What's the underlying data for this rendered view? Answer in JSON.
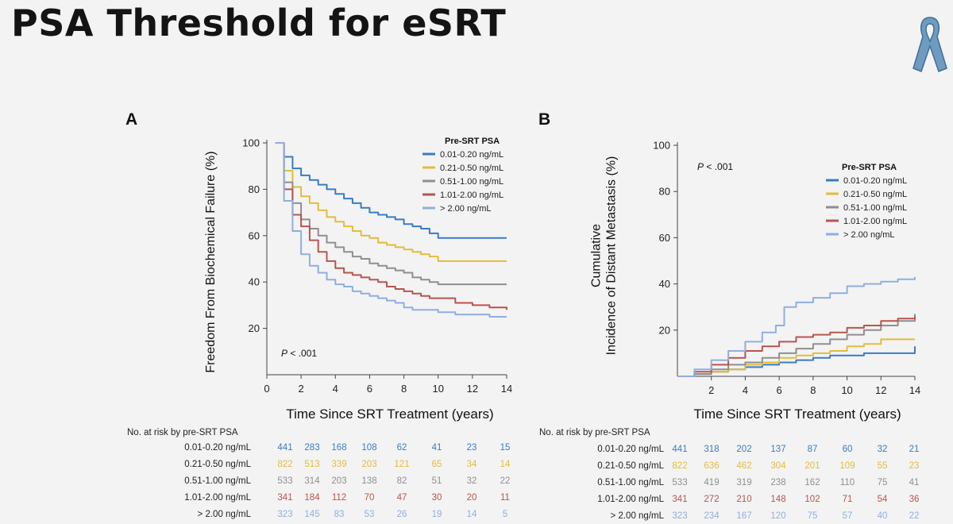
{
  "slide": {
    "title": "PSA Threshold for eSRT",
    "logo_icon": "awareness-ribbon-icon"
  },
  "colors": [
    "#3a7cc2",
    "#e2bd3c",
    "#8f8f8f",
    "#b85450",
    "#90aedf"
  ],
  "chart_data": [
    {
      "type": "line",
      "panel_label": "A",
      "xlabel": "Time Since SRT Treatment (years)",
      "ylabel": "Freedom From Biochemical Failure (%)",
      "xlim": [
        0,
        14
      ],
      "ylim": [
        0,
        100
      ],
      "xticks": [
        0,
        2,
        4,
        6,
        8,
        10,
        12,
        14
      ],
      "yticks": [
        20,
        40,
        60,
        80,
        100
      ],
      "annotation": "P < .001",
      "legend_title": "Pre-SRT PSA",
      "legend_position": "top-right",
      "series": [
        {
          "name": "0.01-0.20 ng/mL",
          "x": [
            0.5,
            1,
            1.5,
            2,
            2.5,
            3,
            3.5,
            4,
            4.5,
            5,
            5.5,
            6,
            6.5,
            7,
            7.5,
            8,
            8.5,
            9,
            9.5,
            10,
            11,
            12,
            13,
            14
          ],
          "y": [
            100,
            94,
            89,
            86,
            84,
            82,
            80,
            78,
            76,
            74,
            72,
            70,
            69,
            68,
            67,
            65,
            64,
            63,
            61,
            59,
            59,
            59,
            59,
            59
          ]
        },
        {
          "name": "0.21-0.50 ng/mL",
          "x": [
            0.5,
            1,
            1.5,
            2,
            2.5,
            3,
            3.5,
            4,
            4.5,
            5,
            5.5,
            6,
            6.5,
            7,
            7.5,
            8,
            8.5,
            9,
            9.5,
            10,
            11,
            12,
            13,
            14
          ],
          "y": [
            100,
            88,
            81,
            77,
            74,
            71,
            68,
            66,
            64,
            62,
            60,
            59,
            57,
            56,
            55,
            54,
            53,
            52,
            51,
            49,
            49,
            49,
            49,
            49
          ]
        },
        {
          "name": "0.51-1.00 ng/mL",
          "x": [
            0.5,
            1,
            1.5,
            2,
            2.5,
            3,
            3.5,
            4,
            4.5,
            5,
            5.5,
            6,
            6.5,
            7,
            7.5,
            8,
            8.5,
            9,
            9.5,
            10,
            11,
            12,
            13,
            14
          ],
          "y": [
            100,
            83,
            74,
            67,
            63,
            60,
            57,
            55,
            53,
            51,
            50,
            48,
            47,
            46,
            45,
            44,
            42,
            41,
            40,
            39,
            39,
            39,
            39,
            39
          ]
        },
        {
          "name": "1.01-2.00 ng/mL",
          "x": [
            0.5,
            1,
            1.5,
            2,
            2.5,
            3,
            3.5,
            4,
            4.5,
            5,
            5.5,
            6,
            6.5,
            7,
            7.5,
            8,
            8.5,
            9,
            9.5,
            10,
            11,
            12,
            13,
            14
          ],
          "y": [
            100,
            80,
            69,
            64,
            58,
            53,
            49,
            46,
            44,
            43,
            42,
            41,
            40,
            38,
            37,
            36,
            35,
            34,
            33,
            33,
            31,
            30,
            29,
            28
          ]
        },
        {
          "name": "> 2.00 ng/mL",
          "x": [
            0.5,
            1,
            1.5,
            2,
            2.5,
            3,
            3.5,
            4,
            4.5,
            5,
            5.5,
            6,
            6.5,
            7,
            7.5,
            8,
            8.5,
            9,
            9.5,
            10,
            11,
            12,
            13,
            14
          ],
          "y": [
            100,
            75,
            62,
            52,
            47,
            44,
            41,
            39,
            38,
            36,
            35,
            34,
            33,
            32,
            31,
            29,
            28,
            28,
            28,
            27,
            26,
            26,
            25,
            25
          ]
        }
      ],
      "risk_table": {
        "title": "No. at risk by pre-SRT PSA",
        "rows": [
          {
            "label": "0.01-0.20 ng/mL",
            "values": [
              441,
              283,
              168,
              108,
              62,
              41,
              23,
              15
            ]
          },
          {
            "label": "0.21-0.50 ng/mL",
            "values": [
              822,
              513,
              339,
              203,
              121,
              65,
              34,
              14
            ]
          },
          {
            "label": "0.51-1.00 ng/mL",
            "values": [
              533,
              314,
              203,
              138,
              82,
              51,
              32,
              22
            ]
          },
          {
            "label": "1.01-2.00 ng/mL",
            "values": [
              341,
              184,
              112,
              70,
              47,
              30,
              20,
              11
            ]
          },
          {
            "label": "> 2.00 ng/mL",
            "values": [
              323,
              145,
              83,
              53,
              26,
              19,
              14,
              5
            ]
          }
        ]
      }
    },
    {
      "type": "line",
      "panel_label": "B",
      "xlabel": "Time Since SRT Treatment (years)",
      "ylabel": [
        "Cumulative",
        "Incidence of Distant Metastasis (%)"
      ],
      "xlim": [
        0,
        14
      ],
      "ylim": [
        0,
        100
      ],
      "xticks": [
        2,
        4,
        6,
        8,
        10,
        12,
        14
      ],
      "yticks": [
        20,
        40,
        60,
        80,
        100
      ],
      "annotation": "P < .001",
      "legend_title": "Pre-SRT PSA",
      "legend_position": "top-right",
      "series": [
        {
          "name": "0.01-0.20 ng/mL",
          "x": [
            0,
            1,
            2,
            3,
            4,
            5,
            6,
            7,
            8,
            9,
            10,
            11,
            12,
            13,
            13.8,
            14
          ],
          "y": [
            0,
            1,
            2,
            3,
            4,
            5,
            6,
            7,
            8,
            9,
            9,
            10,
            10,
            10,
            10,
            13
          ]
        },
        {
          "name": "0.21-0.50 ng/mL",
          "x": [
            0,
            1,
            2,
            3,
            4,
            5,
            6,
            7,
            8,
            9,
            10,
            11,
            12,
            13,
            14
          ],
          "y": [
            0,
            1,
            2,
            3,
            5,
            6,
            8,
            9,
            10,
            11,
            13,
            14,
            16,
            16,
            16
          ]
        },
        {
          "name": "0.51-1.00 ng/mL",
          "x": [
            0,
            1,
            2,
            3,
            4,
            5,
            6,
            7,
            8,
            9,
            10,
            11,
            12,
            13,
            14
          ],
          "y": [
            0,
            1,
            3,
            5,
            6,
            8,
            10,
            12,
            14,
            16,
            18,
            20,
            22,
            24,
            27
          ]
        },
        {
          "name": "1.01-2.00 ng/mL",
          "x": [
            0,
            1,
            2,
            3,
            4,
            5,
            6,
            7,
            8,
            9,
            10,
            11,
            12,
            13,
            14
          ],
          "y": [
            0,
            2,
            5,
            8,
            11,
            13,
            15,
            17,
            18,
            19,
            21,
            22,
            24,
            25,
            26
          ]
        },
        {
          "name": "> 2.00 ng/mL",
          "x": [
            0,
            1,
            2,
            3,
            4,
            5,
            5.8,
            6.3,
            7,
            8,
            9,
            10,
            11,
            12,
            13,
            14
          ],
          "y": [
            0,
            3,
            7,
            11,
            15,
            19,
            22,
            30,
            32,
            34,
            36,
            39,
            40,
            41,
            42,
            43
          ]
        }
      ],
      "risk_table": {
        "title": "No. at risk by pre-SRT PSA",
        "rows": [
          {
            "label": "0.01-0.20 ng/mL",
            "values": [
              441,
              318,
              202,
              137,
              87,
              60,
              32,
              21
            ]
          },
          {
            "label": "0.21-0.50 ng/mL",
            "values": [
              822,
              636,
              462,
              304,
              201,
              109,
              55,
              23
            ]
          },
          {
            "label": "0.51-1.00 ng/mL",
            "values": [
              533,
              419,
              319,
              238,
              162,
              110,
              75,
              41
            ]
          },
          {
            "label": "1.01-2.00 ng/mL",
            "values": [
              341,
              272,
              210,
              148,
              102,
              71,
              54,
              36
            ]
          },
          {
            "label": "> 2.00 ng/mL",
            "values": [
              323,
              234,
              167,
              120,
              75,
              57,
              40,
              22
            ]
          }
        ]
      }
    }
  ]
}
